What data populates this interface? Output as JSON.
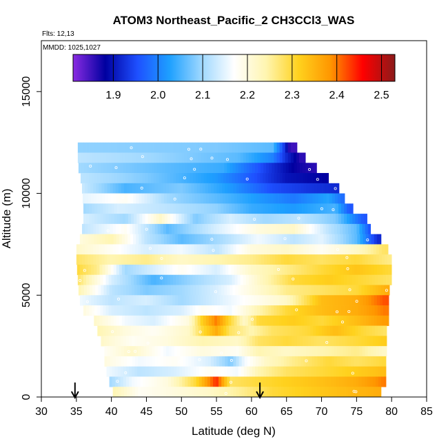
{
  "chart_data": {
    "type": "heatmap",
    "title": "ATOM3 Northeast_Pacific_2 CH3CCl3_WAS",
    "flights_label": "Flts: 12,13",
    "dates_label": "MMDD: 1025,1027",
    "xlabel": "Latitude (deg N)",
    "ylabel": "Altitude (m)",
    "xlim": [
      30,
      85
    ],
    "ylim": [
      0,
      17500
    ],
    "x_ticks": [
      "30",
      "35",
      "40",
      "45",
      "50",
      "55",
      "60",
      "65",
      "70",
      "75",
      "80",
      "85"
    ],
    "y_ticks": [
      "0",
      "5000",
      "10000",
      "15000"
    ],
    "colorbar": {
      "range": [
        1.81,
        2.53
      ],
      "tick_labels": [
        "1.9",
        "2.0",
        "2.1",
        "2.2",
        "2.3",
        "2.4",
        "2.5"
      ],
      "tick_values": [
        1.9,
        2.0,
        2.1,
        2.2,
        2.3,
        2.4,
        2.5
      ],
      "colors": [
        "#8a2be2",
        "#0000a0",
        "#1e50ff",
        "#1ea0ff",
        "#9fd8ff",
        "#ffffff",
        "#fff5b0",
        "#ffd21e",
        "#ff9600",
        "#ff0000",
        "#8b1a1a"
      ]
    },
    "profile_markers_lat": [
      34.8,
      61.2
    ],
    "altitude_bands": [
      {
        "alt_top": 12500,
        "alt_bottom": 12000,
        "lat_start": 35.2,
        "lat_end": 66.5,
        "values": [
          [
            35.2,
            2.09
          ],
          [
            55,
            2.08
          ],
          [
            63,
            2.06
          ],
          [
            64.5,
            1.95
          ],
          [
            65.5,
            1.85
          ]
        ]
      },
      {
        "alt_top": 12000,
        "alt_bottom": 11500,
        "lat_start": 35.2,
        "lat_end": 67.7,
        "values": [
          [
            35.2,
            2.12
          ],
          [
            45,
            2.1
          ],
          [
            58,
            2.06
          ],
          [
            63,
            2.0
          ],
          [
            65,
            1.92
          ],
          [
            67,
            1.86
          ]
        ]
      },
      {
        "alt_top": 11500,
        "alt_bottom": 11000,
        "lat_start": 35.3,
        "lat_end": 69.3,
        "values": [
          [
            35.3,
            2.1
          ],
          [
            48,
            2.06
          ],
          [
            56,
            2.04
          ],
          [
            62,
            1.94
          ],
          [
            66,
            1.88
          ],
          [
            69,
            1.86
          ]
        ]
      },
      {
        "alt_top": 11000,
        "alt_bottom": 10500,
        "lat_start": 35.6,
        "lat_end": 71.0,
        "values": [
          [
            35.6,
            2.12
          ],
          [
            45,
            2.08
          ],
          [
            55,
            2.02
          ],
          [
            60,
            1.96
          ],
          [
            65,
            1.9
          ],
          [
            71,
            1.88
          ]
        ]
      },
      {
        "alt_top": 10500,
        "alt_bottom": 10000,
        "lat_start": 35.8,
        "lat_end": 72.5,
        "values": [
          [
            35.8,
            2.13
          ],
          [
            42,
            2.05
          ],
          [
            50,
            2.08
          ],
          [
            57,
            2.02
          ],
          [
            63,
            1.95
          ],
          [
            68,
            1.93
          ],
          [
            72,
            1.92
          ]
        ]
      },
      {
        "alt_top": 10000,
        "alt_bottom": 9500,
        "lat_start": 35.9,
        "lat_end": 73.3,
        "values": [
          [
            35.9,
            2.15
          ],
          [
            42,
            2.18
          ],
          [
            48,
            2.1
          ],
          [
            55,
            2.06
          ],
          [
            61,
            2.02
          ],
          [
            66,
            1.99
          ],
          [
            71,
            2.03
          ],
          [
            73,
            1.98
          ]
        ]
      },
      {
        "alt_top": 9500,
        "alt_bottom": 9000,
        "lat_start": 36.0,
        "lat_end": 74.5,
        "values": [
          [
            36,
            2.1
          ],
          [
            41,
            2.14
          ],
          [
            48,
            2.12
          ],
          [
            55,
            2.09
          ],
          [
            60,
            2.04
          ],
          [
            66,
            2.02
          ],
          [
            72,
            2.05
          ],
          [
            74,
            1.96
          ]
        ]
      },
      {
        "alt_top": 9000,
        "alt_bottom": 8500,
        "lat_start": 36.0,
        "lat_end": 76.5,
        "values": [
          [
            36,
            2.14
          ],
          [
            42,
            2.1
          ],
          [
            47,
            2.22
          ],
          [
            52,
            2.08
          ],
          [
            57,
            2.14
          ],
          [
            62,
            2.1
          ],
          [
            67,
            2.12
          ],
          [
            72,
            2.08
          ],
          [
            76,
            1.96
          ]
        ]
      },
      {
        "alt_top": 8500,
        "alt_bottom": 8000,
        "lat_start": 35.8,
        "lat_end": 77.0,
        "values": [
          [
            35.8,
            2.12
          ],
          [
            42,
            2.18
          ],
          [
            48,
            2.06
          ],
          [
            55,
            2.14
          ],
          [
            61,
            2.2
          ],
          [
            66,
            2.22
          ],
          [
            71,
            2.12
          ],
          [
            75,
            2.06
          ],
          [
            77,
            1.95
          ]
        ]
      },
      {
        "alt_top": 8000,
        "alt_bottom": 7500,
        "lat_start": 35.5,
        "lat_end": 78.5,
        "values": [
          [
            35.5,
            2.2
          ],
          [
            40,
            2.24
          ],
          [
            45,
            2.12
          ],
          [
            50,
            2.06
          ],
          [
            55,
            2.1
          ],
          [
            61,
            2.16
          ],
          [
            66,
            2.12
          ],
          [
            70,
            2.15
          ],
          [
            75,
            2.06
          ],
          [
            78,
            1.92
          ]
        ]
      },
      {
        "alt_top": 7500,
        "alt_bottom": 7000,
        "lat_start": 35.0,
        "lat_end": 79.5,
        "values": [
          [
            35,
            2.22
          ],
          [
            40,
            2.18
          ],
          [
            45,
            2.14
          ],
          [
            50,
            2.16
          ],
          [
            55,
            2.12
          ],
          [
            60,
            2.2
          ],
          [
            65,
            2.22
          ],
          [
            70,
            2.18
          ],
          [
            75,
            2.22
          ],
          [
            79,
            2.28
          ]
        ]
      },
      {
        "alt_top": 7000,
        "alt_bottom": 6500,
        "lat_start": 35.0,
        "lat_end": 80.0,
        "values": [
          [
            35,
            2.28
          ],
          [
            40,
            2.24
          ],
          [
            45,
            2.26
          ],
          [
            50,
            2.22
          ],
          [
            55,
            2.24
          ],
          [
            60,
            2.26
          ],
          [
            65,
            2.3
          ],
          [
            70,
            2.28
          ],
          [
            75,
            2.3
          ],
          [
            80,
            2.26
          ]
        ]
      },
      {
        "alt_top": 6500,
        "alt_bottom": 6000,
        "lat_start": 35.1,
        "lat_end": 80.0,
        "values": [
          [
            35.1,
            2.3
          ],
          [
            38,
            2.26
          ],
          [
            42,
            2.1
          ],
          [
            50,
            2.18
          ],
          [
            55,
            2.14
          ],
          [
            60,
            2.22
          ],
          [
            65,
            2.26
          ],
          [
            70,
            2.3
          ],
          [
            75,
            2.33
          ],
          [
            80,
            2.3
          ]
        ]
      },
      {
        "alt_top": 6000,
        "alt_bottom": 5500,
        "lat_start": 35.2,
        "lat_end": 80.0,
        "values": [
          [
            35.2,
            2.28
          ],
          [
            40,
            2.14
          ],
          [
            46,
            2.05
          ],
          [
            52,
            2.1
          ],
          [
            57,
            2.14
          ],
          [
            61,
            2.22
          ],
          [
            66,
            2.3
          ],
          [
            71,
            2.32
          ],
          [
            76,
            2.3
          ],
          [
            80,
            2.28
          ]
        ]
      },
      {
        "alt_top": 5500,
        "alt_bottom": 5000,
        "lat_start": 35.3,
        "lat_end": 79.7,
        "values": [
          [
            35.3,
            2.24
          ],
          [
            40,
            2.12
          ],
          [
            45,
            2.08
          ],
          [
            50,
            2.1
          ],
          [
            55,
            2.14
          ],
          [
            60,
            2.2
          ],
          [
            65,
            2.26
          ],
          [
            70,
            2.28
          ],
          [
            75,
            2.3
          ],
          [
            79.5,
            2.36
          ]
        ]
      },
      {
        "alt_top": 5000,
        "alt_bottom": 4500,
        "lat_start": 35.5,
        "lat_end": 79.6,
        "values": [
          [
            35.5,
            2.16
          ],
          [
            40,
            2.12
          ],
          [
            45,
            2.14
          ],
          [
            50,
            2.1
          ],
          [
            55,
            2.14
          ],
          [
            60,
            2.18
          ],
          [
            65,
            2.22
          ],
          [
            70,
            2.34
          ],
          [
            75,
            2.36
          ],
          [
            79,
            2.42
          ]
        ]
      },
      {
        "alt_top": 4500,
        "alt_bottom": 4000,
        "lat_start": 36.0,
        "lat_end": 79.6,
        "values": [
          [
            36,
            2.2
          ],
          [
            40,
            2.14
          ],
          [
            45,
            2.12
          ],
          [
            50,
            2.14
          ],
          [
            53,
            2.18
          ],
          [
            57,
            2.16
          ],
          [
            61,
            2.24
          ],
          [
            65,
            2.3
          ],
          [
            70,
            2.34
          ],
          [
            75,
            2.36
          ],
          [
            79,
            2.4
          ]
        ]
      },
      {
        "alt_top": 4000,
        "alt_bottom": 3500,
        "lat_start": 37.5,
        "lat_end": 79.6,
        "values": [
          [
            37.5,
            2.22
          ],
          [
            42,
            2.16
          ],
          [
            46,
            2.14
          ],
          [
            51,
            2.2
          ],
          [
            53,
            2.32
          ],
          [
            55,
            2.4
          ],
          [
            57,
            2.3
          ],
          [
            59,
            2.22
          ],
          [
            61,
            2.3
          ],
          [
            66,
            2.32
          ],
          [
            70,
            2.3
          ],
          [
            75,
            2.34
          ],
          [
            79,
            2.38
          ]
        ]
      },
      {
        "alt_top": 3500,
        "alt_bottom": 3000,
        "lat_start": 38.0,
        "lat_end": 79.3,
        "values": [
          [
            38,
            2.24
          ],
          [
            42,
            2.2
          ],
          [
            46,
            2.18
          ],
          [
            51,
            2.22
          ],
          [
            53,
            2.3
          ],
          [
            55,
            2.36
          ],
          [
            57,
            2.28
          ],
          [
            60,
            2.24
          ],
          [
            63,
            2.28
          ],
          [
            68,
            2.3
          ],
          [
            72,
            2.34
          ],
          [
            76,
            2.3
          ],
          [
            79,
            2.28
          ]
        ]
      },
      {
        "alt_top": 3000,
        "alt_bottom": 2500,
        "lat_start": 38.5,
        "lat_end": 79.3,
        "values": [
          [
            38.5,
            2.22
          ],
          [
            43,
            2.18
          ],
          [
            48,
            2.2
          ],
          [
            53,
            2.24
          ],
          [
            58,
            2.22
          ],
          [
            61,
            2.28
          ],
          [
            65,
            2.3
          ],
          [
            70,
            2.28
          ],
          [
            75,
            2.3
          ],
          [
            79,
            2.32
          ]
        ]
      },
      {
        "alt_top": 2500,
        "alt_bottom": 2000,
        "lat_start": 39.0,
        "lat_end": 79.3,
        "values": [
          [
            39,
            2.18
          ],
          [
            43,
            2.22
          ],
          [
            48,
            2.16
          ],
          [
            53,
            2.2
          ],
          [
            58,
            2.18
          ],
          [
            61,
            2.24
          ],
          [
            65,
            2.22
          ],
          [
            70,
            2.24
          ],
          [
            75,
            2.26
          ],
          [
            79,
            2.22
          ]
        ]
      },
      {
        "alt_top": 2000,
        "alt_bottom": 1500,
        "lat_start": 39.0,
        "lat_end": 79.2,
        "values": [
          [
            39,
            2.2
          ],
          [
            44,
            2.16
          ],
          [
            49,
            2.18
          ],
          [
            54,
            2.14
          ],
          [
            57,
            2.08
          ],
          [
            59,
            2.16
          ],
          [
            62,
            2.22
          ],
          [
            66,
            2.26
          ],
          [
            71,
            2.3
          ],
          [
            75,
            2.28
          ],
          [
            79,
            2.3
          ]
        ]
      },
      {
        "alt_top": 1500,
        "alt_bottom": 1000,
        "lat_start": 39.3,
        "lat_end": 79.2,
        "values": [
          [
            39.3,
            2.16
          ],
          [
            44,
            2.12
          ],
          [
            49,
            2.14
          ],
          [
            54,
            2.18
          ],
          [
            58,
            2.16
          ],
          [
            61,
            2.24
          ],
          [
            65,
            2.28
          ],
          [
            70,
            2.3
          ],
          [
            75,
            2.32
          ],
          [
            79,
            2.34
          ]
        ]
      },
      {
        "alt_top": 1000,
        "alt_bottom": 500,
        "lat_start": 39.7,
        "lat_end": 79.2,
        "values": [
          [
            39.7,
            2.1
          ],
          [
            43,
            2.16
          ],
          [
            48,
            2.2
          ],
          [
            52,
            2.3
          ],
          [
            55,
            2.44
          ],
          [
            57,
            2.28
          ],
          [
            61,
            2.3
          ],
          [
            66,
            2.32
          ],
          [
            71,
            2.34
          ],
          [
            75,
            2.36
          ],
          [
            79,
            2.4
          ]
        ]
      },
      {
        "alt_top": 500,
        "alt_bottom": 0,
        "lat_start": 40.2,
        "lat_end": 78.5,
        "values": [
          [
            40.2,
            2.24
          ],
          [
            44,
            2.18
          ],
          [
            49,
            2.2
          ],
          [
            54,
            2.22
          ],
          [
            59,
            2.26
          ],
          [
            63,
            2.3
          ],
          [
            68,
            2.32
          ],
          [
            73,
            2.34
          ],
          [
            78.5,
            2.36
          ]
        ]
      }
    ]
  }
}
